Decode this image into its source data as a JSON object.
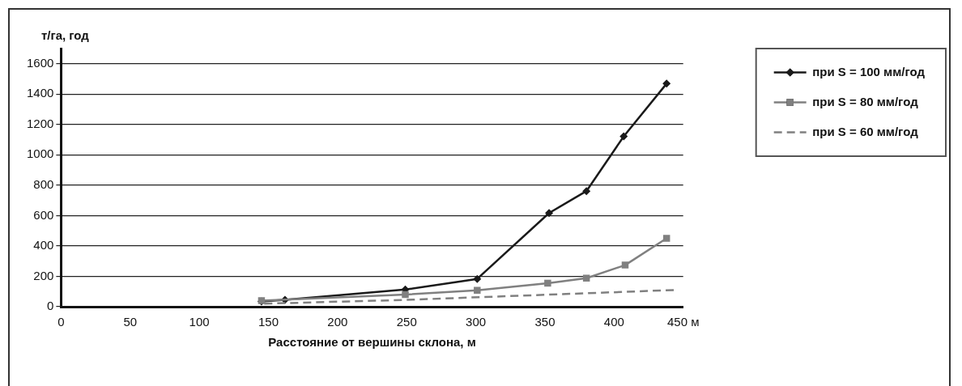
{
  "chart_data": {
    "type": "line",
    "xlabel": "Расстояние от вершины склона, м",
    "ylabel": "т/га, год",
    "xlim": [
      0,
      450
    ],
    "xticks": [
      0,
      50,
      100,
      150,
      200,
      250,
      300,
      350,
      400,
      {
        "value": 450,
        "label": "450 м"
      }
    ],
    "ylim": [
      0,
      1700
    ],
    "yticks": [
      0,
      200,
      400,
      600,
      800,
      1000,
      1200,
      1400,
      1600
    ],
    "grid": "y",
    "legend": "right",
    "series": [
      {
        "name": "при S = 100 мм/год",
        "color": "#1a1a1a",
        "marker": "diamond",
        "line_style": "solid",
        "x": [
          145,
          162,
          249,
          301,
          353,
          380,
          407,
          438
        ],
        "values": [
          35,
          45,
          113,
          183,
          617,
          761,
          1122,
          1469
        ]
      },
      {
        "name": "при S = 80 мм/год",
        "color": "#808080",
        "marker": "square",
        "line_style": "solid",
        "x": [
          145,
          249,
          301,
          352,
          380,
          408,
          438
        ],
        "values": [
          40,
          80,
          108,
          155,
          188,
          274,
          450
        ]
      },
      {
        "name": "при S = 60 мм/год",
        "color": "#808080",
        "marker": "none",
        "line_style": "dashed",
        "x": [
          147,
          250,
          444
        ],
        "values": [
          20,
          45,
          110
        ]
      }
    ]
  }
}
